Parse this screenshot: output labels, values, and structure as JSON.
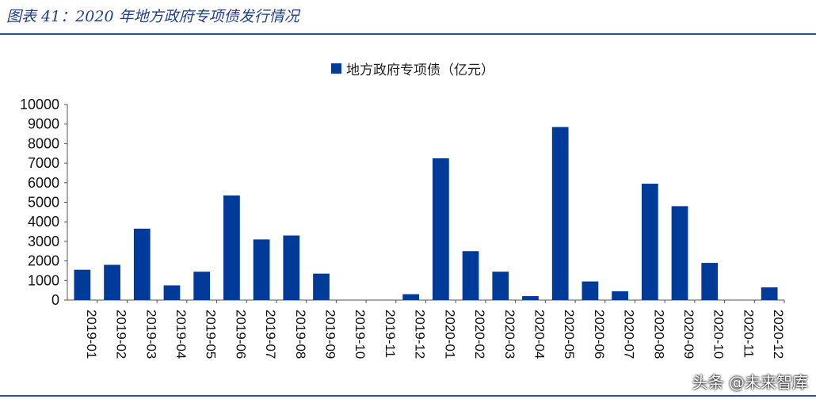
{
  "figure_title": "图表 41：2020 年地方政府专项债发行情况",
  "watermark": "头条 @未来智库",
  "colors": {
    "bar": "#003b9a",
    "rule": "#2f4f9f",
    "title": "#1f3f8f"
  },
  "chart_data": {
    "type": "bar",
    "title": "",
    "xlabel": "",
    "ylabel": "",
    "ylim": [
      0,
      10000
    ],
    "yticks": [
      0,
      1000,
      2000,
      3000,
      4000,
      5000,
      6000,
      7000,
      8000,
      9000,
      10000
    ],
    "grid": false,
    "legend_position": "top-center",
    "categories": [
      "2019-01",
      "2019-02",
      "2019-03",
      "2019-04",
      "2019-05",
      "2019-06",
      "2019-07",
      "2019-08",
      "2019-09",
      "2019-10",
      "2019-11",
      "2019-12",
      "2020-01",
      "2020-02",
      "2020-03",
      "2020-04",
      "2020-05",
      "2020-06",
      "2020-07",
      "2020-08",
      "2020-09",
      "2020-10",
      "2020-11",
      "2020-12"
    ],
    "series": [
      {
        "name": "地方政府专项债（亿元）",
        "values": [
          1550,
          1800,
          3650,
          750,
          1450,
          5350,
          3100,
          3300,
          1350,
          0,
          0,
          300,
          7250,
          2500,
          1450,
          200,
          8850,
          950,
          450,
          5950,
          4800,
          1900,
          0,
          650
        ]
      }
    ]
  }
}
